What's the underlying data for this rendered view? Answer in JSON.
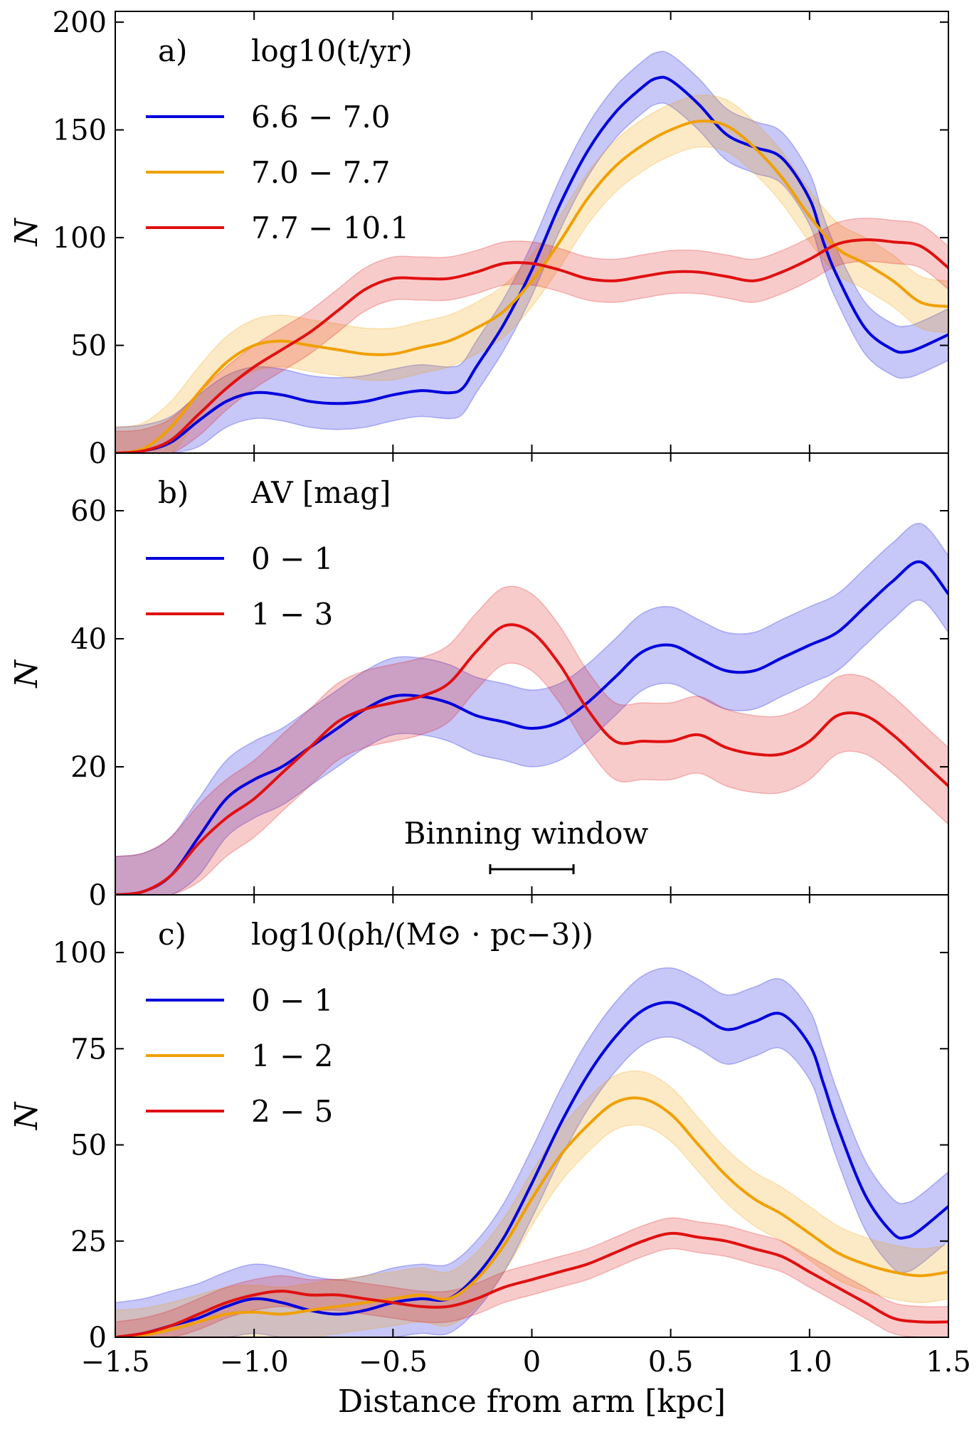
{
  "figure": {
    "x_axis_label": "Distance from arm [kpc]"
  },
  "colors": {
    "blue": "#0000dd",
    "orange": "#f0a000",
    "red": "#e01010"
  },
  "annotation": {
    "text": "Binning window",
    "x_range": [
      -0.15,
      0.15
    ]
  },
  "chart_data": [
    {
      "type": "line",
      "panel": "a)",
      "legend_title": "log10(t/yr)",
      "ylabel": "N",
      "xlim": [
        -1.5,
        1.5
      ],
      "ylim": [
        0,
        205
      ],
      "xticks": [
        -1.5,
        -1.0,
        -0.5,
        0,
        0.5,
        1.0,
        1.5
      ],
      "xtick_labels": [
        "−1.5",
        "−1.0",
        "−0.5",
        "0",
        "0.5",
        "1.0",
        "1.5"
      ],
      "yticks": [
        0,
        50,
        100,
        150,
        200
      ],
      "ytick_labels": [
        "0",
        "50",
        "100",
        "150",
        "200"
      ],
      "series": [
        {
          "name": "6.6 − 7.0",
          "color": "blue",
          "band": 12,
          "points": [
            [
              -1.5,
              0
            ],
            [
              -1.4,
              1
            ],
            [
              -1.3,
              5
            ],
            [
              -1.2,
              15
            ],
            [
              -1.1,
              24
            ],
            [
              -1.0,
              28
            ],
            [
              -0.9,
              27
            ],
            [
              -0.8,
              24
            ],
            [
              -0.7,
              23
            ],
            [
              -0.6,
              24
            ],
            [
              -0.5,
              27
            ],
            [
              -0.4,
              29
            ],
            [
              -0.3,
              28
            ],
            [
              -0.25,
              30
            ],
            [
              -0.2,
              40
            ],
            [
              -0.1,
              60
            ],
            [
              0,
              85
            ],
            [
              0.1,
              115
            ],
            [
              0.2,
              140
            ],
            [
              0.3,
              158
            ],
            [
              0.4,
              170
            ],
            [
              0.45,
              174
            ],
            [
              0.5,
              173
            ],
            [
              0.6,
              162
            ],
            [
              0.7,
              148
            ],
            [
              0.8,
              142
            ],
            [
              0.9,
              137
            ],
            [
              1.0,
              118
            ],
            [
              1.05,
              98
            ],
            [
              1.1,
              82
            ],
            [
              1.2,
              58
            ],
            [
              1.3,
              48
            ],
            [
              1.35,
              47
            ],
            [
              1.4,
              49
            ],
            [
              1.5,
              55
            ]
          ]
        },
        {
          "name": "7.0 − 7.7",
          "color": "orange",
          "band": 12,
          "points": [
            [
              -1.5,
              0
            ],
            [
              -1.4,
              2
            ],
            [
              -1.3,
              12
            ],
            [
              -1.2,
              28
            ],
            [
              -1.1,
              42
            ],
            [
              -1.0,
              50
            ],
            [
              -0.9,
              52
            ],
            [
              -0.8,
              50
            ],
            [
              -0.7,
              48
            ],
            [
              -0.6,
              46
            ],
            [
              -0.5,
              46
            ],
            [
              -0.4,
              49
            ],
            [
              -0.3,
              52
            ],
            [
              -0.2,
              58
            ],
            [
              -0.1,
              66
            ],
            [
              0,
              80
            ],
            [
              0.1,
              98
            ],
            [
              0.2,
              118
            ],
            [
              0.3,
              133
            ],
            [
              0.4,
              143
            ],
            [
              0.5,
              150
            ],
            [
              0.6,
              154
            ],
            [
              0.7,
              152
            ],
            [
              0.8,
              142
            ],
            [
              0.9,
              128
            ],
            [
              1.0,
              110
            ],
            [
              1.1,
              95
            ],
            [
              1.2,
              88
            ],
            [
              1.3,
              80
            ],
            [
              1.4,
              70
            ],
            [
              1.5,
              68
            ]
          ]
        },
        {
          "name": "7.7 − 10.1",
          "color": "red",
          "band": 10,
          "points": [
            [
              -1.5,
              0
            ],
            [
              -1.4,
              1
            ],
            [
              -1.3,
              6
            ],
            [
              -1.2,
              18
            ],
            [
              -1.1,
              30
            ],
            [
              -1.0,
              40
            ],
            [
              -0.9,
              48
            ],
            [
              -0.8,
              56
            ],
            [
              -0.7,
              66
            ],
            [
              -0.6,
              76
            ],
            [
              -0.5,
              81
            ],
            [
              -0.4,
              81
            ],
            [
              -0.3,
              81
            ],
            [
              -0.2,
              84
            ],
            [
              -0.1,
              88
            ],
            [
              0,
              88
            ],
            [
              0.1,
              85
            ],
            [
              0.2,
              81
            ],
            [
              0.3,
              80
            ],
            [
              0.4,
              82
            ],
            [
              0.5,
              84
            ],
            [
              0.6,
              84
            ],
            [
              0.7,
              82
            ],
            [
              0.8,
              80
            ],
            [
              0.9,
              84
            ],
            [
              1.0,
              90
            ],
            [
              1.1,
              97
            ],
            [
              1.2,
              99
            ],
            [
              1.3,
              98
            ],
            [
              1.4,
              96
            ],
            [
              1.5,
              86
            ]
          ]
        }
      ]
    },
    {
      "type": "line",
      "panel": "b)",
      "legend_title": "AV [mag]",
      "ylabel": "N",
      "xlim": [
        -1.5,
        1.5
      ],
      "ylim": [
        0,
        69
      ],
      "yticks": [
        0,
        20,
        40,
        60
      ],
      "ytick_labels": [
        "0",
        "20",
        "40",
        "60"
      ],
      "series": [
        {
          "name": "0 − 1",
          "color": "blue",
          "band": 6,
          "points": [
            [
              -1.5,
              0
            ],
            [
              -1.4,
              0.5
            ],
            [
              -1.3,
              3
            ],
            [
              -1.2,
              9
            ],
            [
              -1.1,
              15
            ],
            [
              -1.0,
              18
            ],
            [
              -0.9,
              20
            ],
            [
              -0.8,
              23
            ],
            [
              -0.7,
              26
            ],
            [
              -0.6,
              29
            ],
            [
              -0.5,
              31
            ],
            [
              -0.4,
              31
            ],
            [
              -0.3,
              30
            ],
            [
              -0.2,
              28
            ],
            [
              -0.1,
              27
            ],
            [
              0,
              26
            ],
            [
              0.1,
              27
            ],
            [
              0.2,
              30
            ],
            [
              0.3,
              34
            ],
            [
              0.4,
              38
            ],
            [
              0.5,
              39
            ],
            [
              0.6,
              37
            ],
            [
              0.7,
              35
            ],
            [
              0.8,
              35
            ],
            [
              0.9,
              37
            ],
            [
              1.0,
              39
            ],
            [
              1.1,
              41
            ],
            [
              1.2,
              45
            ],
            [
              1.3,
              49
            ],
            [
              1.4,
              52
            ],
            [
              1.5,
              47
            ]
          ]
        },
        {
          "name": "1 − 3",
          "color": "red",
          "band": 6,
          "points": [
            [
              -1.5,
              0
            ],
            [
              -1.4,
              0.5
            ],
            [
              -1.3,
              3
            ],
            [
              -1.2,
              8
            ],
            [
              -1.1,
              12
            ],
            [
              -1.0,
              15
            ],
            [
              -0.9,
              19
            ],
            [
              -0.8,
              23
            ],
            [
              -0.7,
              27
            ],
            [
              -0.6,
              29
            ],
            [
              -0.5,
              30
            ],
            [
              -0.4,
              31
            ],
            [
              -0.3,
              33
            ],
            [
              -0.2,
              38
            ],
            [
              -0.1,
              42
            ],
            [
              0,
              41
            ],
            [
              0.1,
              36
            ],
            [
              0.2,
              29
            ],
            [
              0.3,
              24
            ],
            [
              0.4,
              24
            ],
            [
              0.5,
              24
            ],
            [
              0.6,
              25
            ],
            [
              0.7,
              23
            ],
            [
              0.8,
              22
            ],
            [
              0.9,
              22
            ],
            [
              1.0,
              24
            ],
            [
              1.1,
              28
            ],
            [
              1.2,
              28
            ],
            [
              1.3,
              25
            ],
            [
              1.4,
              21
            ],
            [
              1.5,
              17
            ]
          ]
        }
      ]
    },
    {
      "type": "line",
      "panel": "c)",
      "legend_title": "log10(ρh/(M⊙ · pc−3))",
      "ylabel": "N",
      "xlim": [
        -1.5,
        1.5
      ],
      "ylim": [
        0,
        115
      ],
      "yticks": [
        0,
        25,
        50,
        75,
        100
      ],
      "ytick_labels": [
        "0",
        "25",
        "50",
        "75",
        "100"
      ],
      "series": [
        {
          "name": "0 − 1",
          "color": "blue",
          "band": 9,
          "points": [
            [
              -1.5,
              0
            ],
            [
              -1.4,
              1
            ],
            [
              -1.3,
              3
            ],
            [
              -1.2,
              5
            ],
            [
              -1.1,
              8
            ],
            [
              -1.0,
              10
            ],
            [
              -0.9,
              9
            ],
            [
              -0.8,
              7
            ],
            [
              -0.7,
              6
            ],
            [
              -0.6,
              7
            ],
            [
              -0.5,
              9
            ],
            [
              -0.4,
              10
            ],
            [
              -0.3,
              10
            ],
            [
              -0.2,
              16
            ],
            [
              -0.1,
              26
            ],
            [
              0,
              40
            ],
            [
              0.1,
              55
            ],
            [
              0.2,
              68
            ],
            [
              0.3,
              78
            ],
            [
              0.4,
              85
            ],
            [
              0.5,
              87
            ],
            [
              0.6,
              84
            ],
            [
              0.7,
              80
            ],
            [
              0.8,
              82
            ],
            [
              0.9,
              84
            ],
            [
              1.0,
              76
            ],
            [
              1.05,
              66
            ],
            [
              1.1,
              55
            ],
            [
              1.2,
              37
            ],
            [
              1.3,
              27
            ],
            [
              1.35,
              26
            ],
            [
              1.4,
              28
            ],
            [
              1.5,
              34
            ]
          ]
        },
        {
          "name": "1 − 2",
          "color": "orange",
          "band": 7,
          "points": [
            [
              -1.5,
              0
            ],
            [
              -1.4,
              0.5
            ],
            [
              -1.3,
              2
            ],
            [
              -1.2,
              4
            ],
            [
              -1.1,
              6
            ],
            [
              -1.0,
              6.5
            ],
            [
              -0.9,
              6
            ],
            [
              -0.8,
              7
            ],
            [
              -0.7,
              8
            ],
            [
              -0.6,
              9
            ],
            [
              -0.5,
              10
            ],
            [
              -0.4,
              11
            ],
            [
              -0.3,
              10
            ],
            [
              -0.2,
              15
            ],
            [
              -0.1,
              24
            ],
            [
              0,
              36
            ],
            [
              0.1,
              47
            ],
            [
              0.2,
              55
            ],
            [
              0.3,
              61
            ],
            [
              0.4,
              62
            ],
            [
              0.5,
              58
            ],
            [
              0.6,
              50
            ],
            [
              0.7,
              42
            ],
            [
              0.8,
              36
            ],
            [
              0.9,
              32
            ],
            [
              1.0,
              27
            ],
            [
              1.1,
              22
            ],
            [
              1.2,
              19
            ],
            [
              1.3,
              17
            ],
            [
              1.4,
              16
            ],
            [
              1.5,
              17
            ]
          ]
        },
        {
          "name": "2 − 5",
          "color": "red",
          "band": 4,
          "points": [
            [
              -1.5,
              0
            ],
            [
              -1.4,
              1
            ],
            [
              -1.3,
              3
            ],
            [
              -1.2,
              6
            ],
            [
              -1.1,
              9
            ],
            [
              -1.0,
              11
            ],
            [
              -0.9,
              12
            ],
            [
              -0.8,
              11
            ],
            [
              -0.7,
              11
            ],
            [
              -0.6,
              10
            ],
            [
              -0.5,
              9
            ],
            [
              -0.4,
              8
            ],
            [
              -0.3,
              8
            ],
            [
              -0.2,
              10
            ],
            [
              -0.1,
              13
            ],
            [
              0,
              15
            ],
            [
              0.1,
              17
            ],
            [
              0.2,
              19
            ],
            [
              0.3,
              22
            ],
            [
              0.4,
              25
            ],
            [
              0.5,
              27
            ],
            [
              0.6,
              26
            ],
            [
              0.7,
              25
            ],
            [
              0.8,
              23
            ],
            [
              0.9,
              21
            ],
            [
              1.0,
              17
            ],
            [
              1.1,
              13
            ],
            [
              1.2,
              9
            ],
            [
              1.3,
              5
            ],
            [
              1.4,
              4
            ],
            [
              1.5,
              4
            ]
          ]
        }
      ]
    }
  ]
}
